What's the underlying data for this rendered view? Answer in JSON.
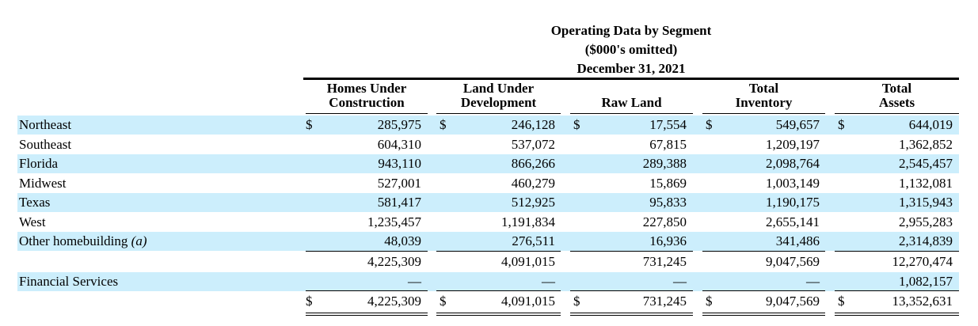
{
  "header": {
    "title": "Operating Data by Segment",
    "subtitle": "($000's omitted)",
    "date": "December 31, 2021"
  },
  "columns": [
    {
      "line1": "Homes Under",
      "line2": "Construction"
    },
    {
      "line1": "Land Under",
      "line2": "Development"
    },
    {
      "line1": "",
      "line2": "Raw Land"
    },
    {
      "line1": "Total",
      "line2": "Inventory"
    },
    {
      "line1": "Total",
      "line2": "Assets"
    }
  ],
  "currency_symbol": "$",
  "rows": [
    {
      "label": "Northeast",
      "values": [
        "285,975",
        "246,128",
        "17,554",
        "549,657",
        "644,019"
      ]
    },
    {
      "label": "Southeast",
      "values": [
        "604,310",
        "537,072",
        "67,815",
        "1,209,197",
        "1,362,852"
      ]
    },
    {
      "label": "Florida",
      "values": [
        "943,110",
        "866,266",
        "289,388",
        "2,098,764",
        "2,545,457"
      ]
    },
    {
      "label": "Midwest",
      "values": [
        "527,001",
        "460,279",
        "15,869",
        "1,003,149",
        "1,132,081"
      ]
    },
    {
      "label": "Texas",
      "values": [
        "581,417",
        "512,925",
        "95,833",
        "1,190,175",
        "1,315,943"
      ]
    },
    {
      "label": "West",
      "values": [
        "1,235,457",
        "1,191,834",
        "227,850",
        "2,655,141",
        "2,955,283"
      ]
    },
    {
      "label": "Other homebuilding",
      "label_note": "(a)",
      "values": [
        "48,039",
        "276,511",
        "16,936",
        "341,486",
        "2,314,839"
      ]
    },
    {
      "label": "",
      "values": [
        "4,225,309",
        "4,091,015",
        "731,245",
        "9,047,569",
        "12,270,474"
      ]
    },
    {
      "label": "Financial Services",
      "values": [
        "—",
        "—",
        "—",
        "—",
        "1,082,157"
      ]
    },
    {
      "label": "",
      "values": [
        "4,225,309",
        "4,091,015",
        "731,245",
        "9,047,569",
        "13,352,631"
      ]
    }
  ]
}
